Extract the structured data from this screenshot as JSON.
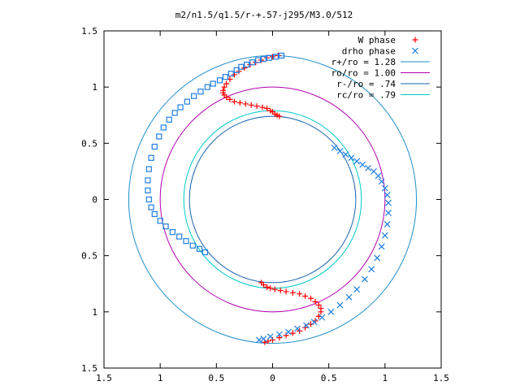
{
  "chart_data": {
    "type": "scatter",
    "title": "m2/n1.5/q1.5/r-+.57-j295/M3.0/512",
    "xlabel": "",
    "ylabel": "",
    "xlim": [
      -1.5,
      1.5
    ],
    "ylim": [
      -1.5,
      1.5
    ],
    "xticks": [
      -1.5,
      -1,
      -0.5,
      0,
      0.5,
      1,
      1.5
    ],
    "yticks": [
      -1.5,
      -1,
      -0.5,
      0,
      0.5,
      1,
      1.5
    ],
    "xtick_labels": [
      "1.5",
      "1",
      "0.5",
      "0",
      "0.5",
      "1",
      "1.5"
    ],
    "ytick_labels": [
      "1.5",
      "1",
      "0.5",
      "0",
      "0.5",
      "1",
      "1.5"
    ],
    "grid": false,
    "legend_position": "top-right",
    "series": [
      {
        "name": "W phase",
        "marker": "plus",
        "color": "#ff0000",
        "points": [
          [
            0.05,
            1.28
          ],
          [
            0.0,
            1.27
          ],
          [
            -0.05,
            1.26
          ],
          [
            -0.1,
            1.24
          ],
          [
            -0.15,
            1.22
          ],
          [
            -0.2,
            1.2
          ],
          [
            -0.25,
            1.17
          ],
          [
            -0.3,
            1.14
          ],
          [
            -0.34,
            1.11
          ],
          [
            -0.38,
            1.07
          ],
          [
            -0.41,
            1.03
          ],
          [
            -0.43,
            1.0
          ],
          [
            -0.44,
            0.97
          ],
          [
            -0.44,
            0.95
          ],
          [
            -0.43,
            0.93
          ],
          [
            -0.41,
            0.91
          ],
          [
            -0.38,
            0.89
          ],
          [
            -0.34,
            0.87
          ],
          [
            -0.29,
            0.86
          ],
          [
            -0.24,
            0.85
          ],
          [
            -0.19,
            0.84
          ],
          [
            -0.14,
            0.83
          ],
          [
            -0.09,
            0.82
          ],
          [
            -0.05,
            0.81
          ],
          [
            -0.02,
            0.79
          ],
          [
            0.0,
            0.78
          ],
          [
            0.02,
            0.76
          ],
          [
            0.04,
            0.75
          ],
          [
            0.06,
            0.74
          ],
          [
            -0.1,
            -0.74
          ],
          [
            -0.08,
            -0.76
          ],
          [
            -0.05,
            -0.78
          ],
          [
            -0.02,
            -0.79
          ],
          [
            0.02,
            -0.8
          ],
          [
            0.07,
            -0.81
          ],
          [
            0.12,
            -0.82
          ],
          [
            0.18,
            -0.83
          ],
          [
            0.24,
            -0.84
          ],
          [
            0.29,
            -0.86
          ],
          [
            0.34,
            -0.88
          ],
          [
            0.38,
            -0.91
          ],
          [
            0.41,
            -0.94
          ],
          [
            0.43,
            -0.97
          ],
          [
            0.43,
            -1.0
          ],
          [
            0.41,
            -1.04
          ],
          [
            0.38,
            -1.08
          ],
          [
            0.34,
            -1.11
          ],
          [
            0.29,
            -1.14
          ],
          [
            0.24,
            -1.17
          ],
          [
            0.18,
            -1.19
          ],
          [
            0.12,
            -1.21
          ],
          [
            0.06,
            -1.23
          ],
          [
            0.0,
            -1.25
          ],
          [
            -0.04,
            -1.26
          ],
          [
            -0.07,
            -1.27
          ]
        ]
      },
      {
        "name": "drho phase",
        "marker": "cross",
        "color": "#1e7fe0",
        "points": [
          [
            0.55,
            0.46
          ],
          [
            0.6,
            0.43
          ],
          [
            0.65,
            0.4
          ],
          [
            0.7,
            0.37
          ],
          [
            0.75,
            0.34
          ],
          [
            0.8,
            0.31
          ],
          [
            0.85,
            0.28
          ],
          [
            0.9,
            0.25
          ],
          [
            0.94,
            0.21
          ],
          [
            0.97,
            0.16
          ],
          [
            1.0,
            0.1
          ],
          [
            1.02,
            0.04
          ],
          [
            1.03,
            -0.03
          ],
          [
            1.03,
            -0.12
          ],
          [
            1.02,
            -0.22
          ],
          [
            1.0,
            -0.32
          ],
          [
            0.97,
            -0.42
          ],
          [
            0.93,
            -0.52
          ],
          [
            0.88,
            -0.62
          ],
          [
            0.82,
            -0.71
          ],
          [
            0.75,
            -0.8
          ],
          [
            0.68,
            -0.87
          ],
          [
            0.6,
            -0.94
          ],
          [
            0.52,
            -1.0
          ],
          [
            0.44,
            -1.05
          ],
          [
            0.37,
            -1.09
          ],
          [
            0.3,
            -1.12
          ],
          [
            0.22,
            -1.15
          ],
          [
            0.14,
            -1.18
          ],
          [
            0.06,
            -1.2
          ],
          [
            -0.02,
            -1.22
          ],
          [
            -0.08,
            -1.24
          ],
          [
            -0.12,
            -1.25
          ]
        ]
      },
      {
        "name": "drho phase",
        "marker": "square",
        "color": "#1e7fe0",
        "points": [
          [
            0.08,
            1.28
          ],
          [
            0.03,
            1.27
          ],
          [
            -0.03,
            1.26
          ],
          [
            -0.08,
            1.25
          ],
          [
            -0.13,
            1.24
          ],
          [
            -0.18,
            1.22
          ],
          [
            -0.23,
            1.2
          ],
          [
            -0.28,
            1.18
          ],
          [
            -0.32,
            1.15
          ],
          [
            -0.37,
            1.12
          ],
          [
            -0.42,
            1.09
          ],
          [
            -0.47,
            1.06
          ],
          [
            -0.53,
            1.03
          ],
          [
            -0.58,
            1.0
          ],
          [
            -0.64,
            0.96
          ],
          [
            -0.7,
            0.92
          ],
          [
            -0.76,
            0.87
          ],
          [
            -0.82,
            0.82
          ],
          [
            -0.87,
            0.77
          ],
          [
            -0.92,
            0.71
          ],
          [
            -0.97,
            0.64
          ],
          [
            -1.01,
            0.56
          ],
          [
            -1.05,
            0.47
          ],
          [
            -1.08,
            0.37
          ],
          [
            -1.1,
            0.27
          ],
          [
            -1.11,
            0.17
          ],
          [
            -1.11,
            0.08
          ],
          [
            -1.1,
            0.0
          ],
          [
            -1.08,
            -0.07
          ],
          [
            -1.05,
            -0.13
          ],
          [
            -1.0,
            -0.19
          ],
          [
            -0.95,
            -0.24
          ],
          [
            -0.89,
            -0.29
          ],
          [
            -0.83,
            -0.33
          ],
          [
            -0.77,
            -0.37
          ],
          [
            -0.71,
            -0.41
          ],
          [
            -0.65,
            -0.44
          ],
          [
            -0.6,
            -0.47
          ]
        ]
      }
    ],
    "circles": [
      {
        "label": "r+/ro = 1.28",
        "radius": 1.28,
        "color": "#1f8fc8"
      },
      {
        "label": "ro/ro = 1.00",
        "radius": 1.0,
        "color": "#b000b0"
      },
      {
        "label": "r-/ro = .74",
        "radius": 0.74,
        "color": "#1866b0"
      },
      {
        "label": "rc/ro = .79",
        "radius": 0.79,
        "color": "#00c8c8"
      }
    ]
  }
}
